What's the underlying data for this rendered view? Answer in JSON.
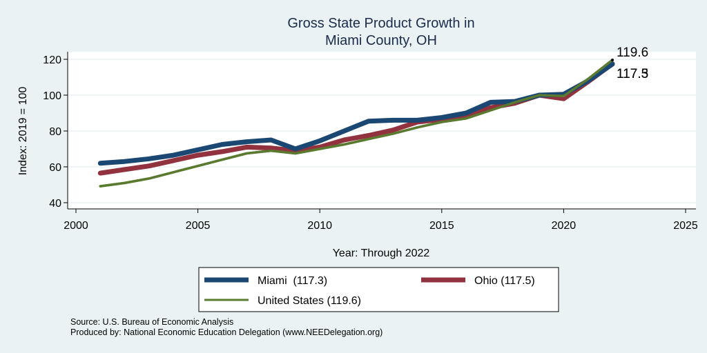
{
  "chart_data": {
    "type": "line",
    "title": "Gross State Product Growth in",
    "subtitle": "Miami County, OH",
    "xlabel": "Year: Through 2022",
    "ylabel": "Index: 2019 = 100",
    "xlim": [
      2000,
      2025
    ],
    "ylim": [
      40,
      120
    ],
    "grid": true,
    "x_ticks": [
      "2000",
      "2005",
      "2010",
      "2015",
      "2020",
      "2025"
    ],
    "y_ticks": [
      "40",
      "60",
      "80",
      "100",
      "120"
    ],
    "x": [
      2001,
      2002,
      2003,
      2004,
      2005,
      2006,
      2007,
      2008,
      2009,
      2010,
      2011,
      2012,
      2013,
      2014,
      2015,
      2016,
      2017,
      2018,
      2019,
      2020,
      2021,
      2022
    ],
    "series": [
      {
        "name": "United States",
        "legend": "United States (119.6)",
        "color": "#5a7b2f",
        "values": [
          49.2,
          51.0,
          53.5,
          57.0,
          60.5,
          64.0,
          67.5,
          69.0,
          67.5,
          70.0,
          72.5,
          75.5,
          78.5,
          82.0,
          85.0,
          87.0,
          91.5,
          96.0,
          100.0,
          99.5,
          109.0,
          119.6
        ]
      },
      {
        "name": "Ohio",
        "legend": "Ohio (117.5)",
        "color": "#93323f",
        "values": [
          56.5,
          58.5,
          60.5,
          63.5,
          66.5,
          68.5,
          71.0,
          70.5,
          69.0,
          71.0,
          75.0,
          77.5,
          80.5,
          85.0,
          86.5,
          88.5,
          93.0,
          95.5,
          100.0,
          98.0,
          107.5,
          117.5
        ]
      },
      {
        "name": "Miami",
        "legend": "Miami  (117.3)",
        "color": "#1b4872",
        "values": [
          62.0,
          63.0,
          64.5,
          66.5,
          69.5,
          72.5,
          74.0,
          75.0,
          70.0,
          74.5,
          80.0,
          85.5,
          86.0,
          86.0,
          87.5,
          90.0,
          96.0,
          96.5,
          100.0,
          100.5,
          108.0,
          117.3
        ]
      }
    ],
    "end_labels": [
      "119.6",
      "117.3",
      "117.5"
    ],
    "legend_position": "bottom"
  },
  "footer": {
    "source": "Source: U.S. Bureau of Economic Analysis",
    "produced_by": "Produced by: National Economic Education Delegation (www.NEEDelegation.org)"
  }
}
